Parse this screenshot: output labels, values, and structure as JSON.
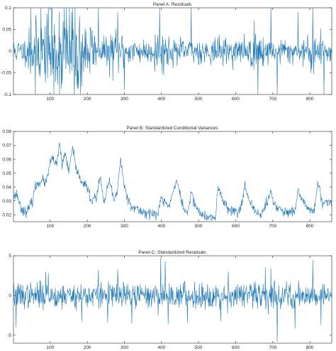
{
  "chart_data": [
    {
      "type": "line",
      "title": "Panel A: Residuals",
      "xlabel": "",
      "ylabel": "",
      "xlim": [
        1,
        859
      ],
      "ylim": [
        -0.1,
        0.1
      ],
      "xticks": [
        100,
        200,
        300,
        400,
        500,
        600,
        700,
        800
      ],
      "yticks": [
        -0.1,
        -0.05,
        0,
        0.05,
        0.1
      ],
      "ytick_labels": [
        "-0.1",
        "-0.05",
        "0",
        "0.05",
        "0.1"
      ],
      "grid": false,
      "color": "#1f77b4",
      "series": [
        {
          "kind": "noisy-residuals",
          "n": 859,
          "base_amplitude": 0.018,
          "volatility_regimes": [
            {
              "x_start": 40,
              "x_end": 220,
              "amplitude": 0.045
            },
            {
              "x_start": 100,
              "x_end": 180,
              "amplitude": 0.07
            },
            {
              "x_start": 260,
              "x_end": 300,
              "amplitude": 0.03
            },
            {
              "x_start": 380,
              "x_end": 420,
              "amplitude": 0.028
            },
            {
              "x_start": 640,
              "x_end": 680,
              "amplitude": 0.03
            },
            {
              "x_start": 800,
              "x_end": 830,
              "amplitude": 0.03
            }
          ],
          "spikes": [
            {
              "x": 48,
              "y": 0.1
            },
            {
              "x": 60,
              "y": -0.1
            },
            {
              "x": 75,
              "y": 0.1
            },
            {
              "x": 95,
              "y": 0.1
            },
            {
              "x": 105,
              "y": 0.1
            },
            {
              "x": 110,
              "y": -0.1
            },
            {
              "x": 138,
              "y": 0.1
            },
            {
              "x": 160,
              "y": 0.1
            },
            {
              "x": 165,
              "y": -0.1
            },
            {
              "x": 182,
              "y": -0.1
            },
            {
              "x": 230,
              "y": 0.1
            },
            {
              "x": 260,
              "y": -0.06
            },
            {
              "x": 282,
              "y": 0.09
            },
            {
              "x": 300,
              "y": -0.09
            },
            {
              "x": 395,
              "y": 0.1
            },
            {
              "x": 480,
              "y": 0.1
            },
            {
              "x": 660,
              "y": -0.1
            },
            {
              "x": 695,
              "y": 0.1
            },
            {
              "x": 712,
              "y": -0.1
            },
            {
              "x": 768,
              "y": 0.09
            },
            {
              "x": 808,
              "y": 0.1
            },
            {
              "x": 838,
              "y": -0.1
            }
          ]
        }
      ]
    },
    {
      "type": "line",
      "title": "Panel B: Standardized Conditional Variances",
      "xlabel": "",
      "ylabel": "",
      "xlim": [
        1,
        859
      ],
      "ylim": [
        0.015,
        0.08
      ],
      "xticks": [
        100,
        200,
        300,
        400,
        500,
        600,
        700,
        800
      ],
      "yticks": [
        0.02,
        0.03,
        0.04,
        0.05,
        0.06,
        0.07,
        0.08
      ],
      "ytick_labels": [
        "0.02",
        "0.03",
        "0.04",
        "0.05",
        "0.06",
        "0.07",
        "0.08"
      ],
      "grid": false,
      "color": "#1f77b4",
      "series": [
        {
          "kind": "conditional-variance",
          "n": 859,
          "anchor_x": [
            1,
            10,
            20,
            30,
            40,
            52,
            60,
            75,
            90,
            100,
            110,
            118,
            125,
            132,
            140,
            150,
            160,
            168,
            178,
            190,
            200,
            210,
            225,
            235,
            245,
            260,
            272,
            280,
            290,
            300,
            315,
            330,
            350,
            370,
            390,
            400,
            405,
            420,
            440,
            460,
            470,
            480,
            500,
            520,
            545,
            552,
            570,
            590,
            610,
            625,
            635,
            650,
            670,
            695,
            705,
            730,
            760,
            768,
            790,
            812,
            822,
            835,
            845,
            859
          ],
          "anchor_y": [
            0.033,
            0.035,
            0.026,
            0.022,
            0.023,
            0.03,
            0.04,
            0.045,
            0.043,
            0.058,
            0.06,
            0.055,
            0.072,
            0.055,
            0.065,
            0.05,
            0.068,
            0.055,
            0.048,
            0.042,
            0.04,
            0.03,
            0.033,
            0.047,
            0.028,
            0.045,
            0.03,
            0.036,
            0.06,
            0.04,
            0.028,
            0.024,
            0.022,
            0.021,
            0.02,
            0.033,
            0.03,
            0.026,
            0.045,
            0.024,
            0.021,
            0.035,
            0.022,
            0.018,
            0.017,
            0.04,
            0.028,
            0.023,
            0.022,
            0.041,
            0.03,
            0.023,
            0.02,
            0.036,
            0.027,
            0.022,
            0.021,
            0.037,
            0.026,
            0.022,
            0.044,
            0.026,
            0.03,
            0.027
          ],
          "noise": 0.0018
        }
      ]
    },
    {
      "type": "line",
      "title": "Panel C: Standardized Residuals",
      "xlabel": "",
      "ylabel": "",
      "xlim": [
        1,
        859
      ],
      "ylim": [
        -6,
        5
      ],
      "xticks": [
        100,
        200,
        300,
        400,
        500,
        600,
        700,
        800
      ],
      "yticks": [
        -5,
        0,
        5
      ],
      "ytick_labels": [
        "-5",
        "0",
        "5"
      ],
      "grid": false,
      "color": "#1f77b4",
      "series": [
        {
          "kind": "noisy-residuals",
          "n": 859,
          "base_amplitude": 1.0,
          "volatility_regimes": [],
          "spikes": [
            {
              "x": 8,
              "y": -4.0
            },
            {
              "x": 88,
              "y": 3.0
            },
            {
              "x": 95,
              "y": 2.8
            },
            {
              "x": 185,
              "y": -3.3
            },
            {
              "x": 230,
              "y": 3.2
            },
            {
              "x": 255,
              "y": -3.4
            },
            {
              "x": 282,
              "y": 3.3
            },
            {
              "x": 320,
              "y": -3.5
            },
            {
              "x": 398,
              "y": 4.7
            },
            {
              "x": 410,
              "y": 4.3
            },
            {
              "x": 418,
              "y": -3.6
            },
            {
              "x": 470,
              "y": -3.4
            },
            {
              "x": 560,
              "y": -3.2
            },
            {
              "x": 580,
              "y": 3.0
            },
            {
              "x": 680,
              "y": 3.5
            },
            {
              "x": 695,
              "y": 3.4
            },
            {
              "x": 712,
              "y": -5.8
            },
            {
              "x": 760,
              "y": -4.1
            },
            {
              "x": 808,
              "y": 4.4
            },
            {
              "x": 830,
              "y": -3.7
            }
          ]
        }
      ]
    }
  ]
}
